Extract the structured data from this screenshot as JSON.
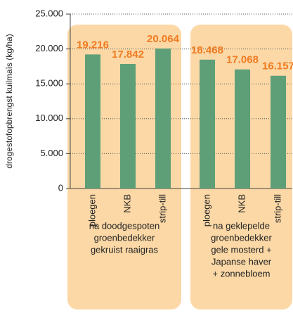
{
  "chart_data": {
    "type": "grouped-bar",
    "y_label": "drogestofopbrengst kuilmaïs (kg/ha)",
    "ylim": [
      0,
      25000
    ],
    "yticks": [
      {
        "value": 0,
        "label": "0"
      },
      {
        "value": 5000,
        "label": "5.000"
      },
      {
        "value": 10000,
        "label": "10.000"
      },
      {
        "value": 15000,
        "label": "15.000"
      },
      {
        "value": 20000,
        "label": "20.000"
      },
      {
        "value": 25000,
        "label": "25.000"
      }
    ],
    "grid": true,
    "color": "#5e9f78",
    "label_color": "#f07b22",
    "group_color": "#fbd8a6",
    "groups": [
      {
        "label": [
          "na doodgespoten",
          "groenbedekker",
          "gekruist raaigras"
        ],
        "categories": [
          "ploegen",
          "NKB",
          "strip-till"
        ],
        "values": [
          19216,
          17842,
          20064
        ],
        "value_labels": [
          "19.216",
          "17.842",
          "20.064"
        ]
      },
      {
        "label": [
          "na geklepelde",
          "groenbedekker",
          "gele mosterd +",
          "Japanse haver",
          "+ zonnebloem"
        ],
        "categories": [
          "ploegen",
          "NKB",
          "strip-till"
        ],
        "values": [
          18468,
          17068,
          16157
        ],
        "value_labels": [
          "18.468",
          "17.068",
          "16.157"
        ]
      }
    ]
  }
}
